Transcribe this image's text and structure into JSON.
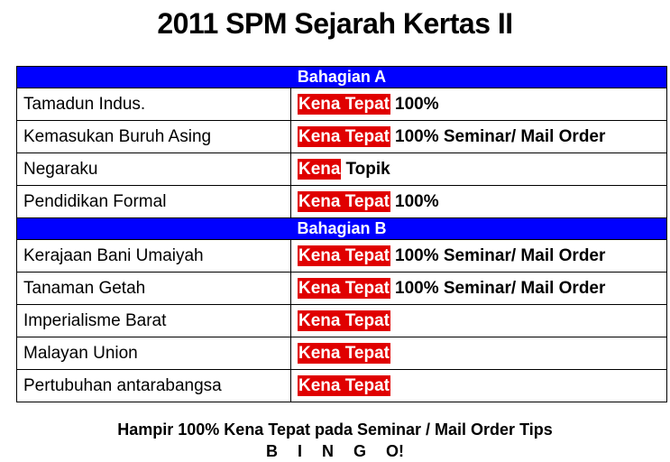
{
  "title": "2011 SPM Sejarah Kertas II",
  "sections": [
    {
      "heading": "Bahagian A",
      "rows": [
        {
          "topic": "Tamadun Indus.",
          "highlight": "Kena Tepat",
          "note": "100%"
        },
        {
          "topic": "Kemasukan Buruh Asing",
          "highlight": "Kena Tepat",
          "note": "100% Seminar/ Mail Order"
        },
        {
          "topic": "Negaraku",
          "highlight": "Kena",
          "note": "Topik"
        },
        {
          "topic": "Pendidikan Formal",
          "highlight": "Kena Tepat",
          "note": "100%"
        }
      ]
    },
    {
      "heading": "Bahagian B",
      "rows": [
        {
          "topic": "Kerajaan Bani Umaiyah",
          "highlight": "Kena Tepat",
          "note": "100% Seminar/ Mail Order"
        },
        {
          "topic": "Tanaman Getah",
          "highlight": "Kena Tepat",
          "note": "100% Seminar/ Mail Order"
        },
        {
          "topic": "Imperialisme Barat",
          "highlight": "Kena Tepat",
          "note": ""
        },
        {
          "topic": "Malayan Union",
          "highlight": "Kena Tepat",
          "note": ""
        },
        {
          "topic": "Pertubuhan antarabangsa",
          "highlight": "Kena Tepat",
          "note": ""
        }
      ]
    }
  ],
  "footer": {
    "line1": "Hampir 100% Kena Tepat pada Seminar / Mail Order Tips",
    "line2": "B  I  N  G  O!"
  },
  "colors": {
    "section_header": "#0000ff",
    "highlight": "#e00000"
  }
}
